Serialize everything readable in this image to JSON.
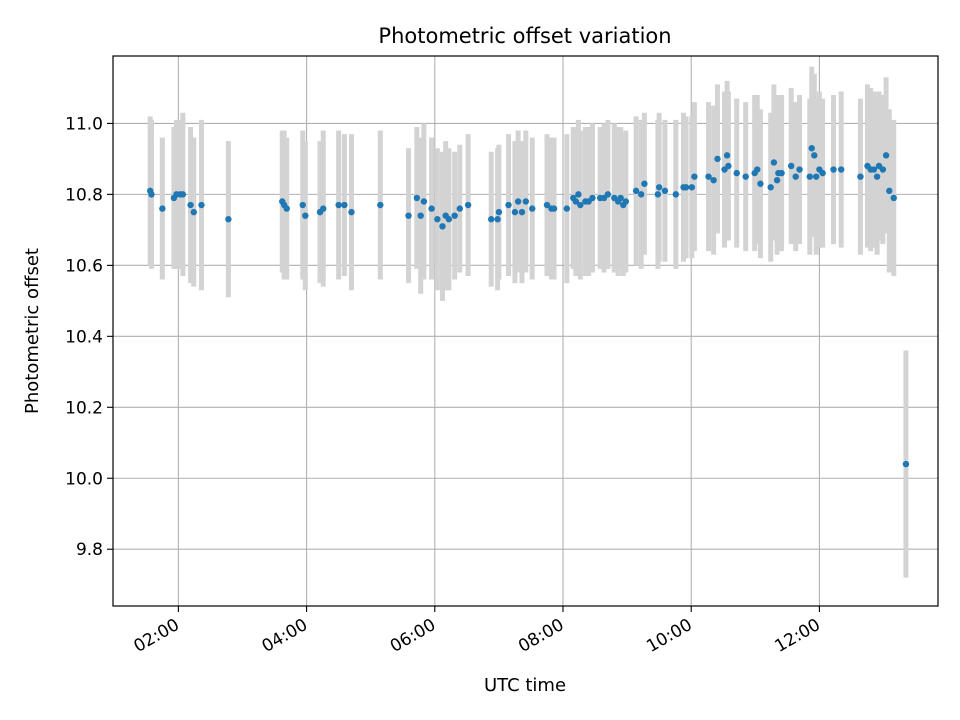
{
  "chart_data": {
    "type": "scatter",
    "title": "Photometric offset variation",
    "xlabel": "UTC time",
    "ylabel": "Photometric offset",
    "x_unit": "hours UTC",
    "xlim": [
      0.98,
      13.85
    ],
    "ylim": [
      9.64,
      11.19
    ],
    "x_ticks": [
      {
        "value": 2,
        "label": "02:00"
      },
      {
        "value": 4,
        "label": "04:00"
      },
      {
        "value": 6,
        "label": "06:00"
      },
      {
        "value": 8,
        "label": "08:00"
      },
      {
        "value": 10,
        "label": "10:00"
      },
      {
        "value": 12,
        "label": "12:00"
      }
    ],
    "y_ticks": [
      {
        "value": 9.8,
        "label": "9.8"
      },
      {
        "value": 10.0,
        "label": "10.0"
      },
      {
        "value": 10.2,
        "label": "10.2"
      },
      {
        "value": 10.4,
        "label": "10.4"
      },
      {
        "value": 10.6,
        "label": "10.6"
      },
      {
        "value": 10.8,
        "label": "10.8"
      },
      {
        "value": 11.0,
        "label": "11.0"
      }
    ],
    "grid": true,
    "colors": {
      "point": "#1f77b4",
      "errorbar": "#d3d3d3",
      "grid": "#b0b0b0",
      "axes": "#000000"
    },
    "series": [
      {
        "points": [
          [
            1.56,
            10.81,
            0.21
          ],
          [
            1.58,
            10.8,
            0.21
          ],
          [
            1.75,
            10.76,
            0.2
          ],
          [
            1.93,
            10.79,
            0.2
          ],
          [
            1.97,
            10.8,
            0.21
          ],
          [
            2.03,
            10.8,
            0.21
          ],
          [
            2.07,
            10.8,
            0.23
          ],
          [
            2.19,
            10.77,
            0.22
          ],
          [
            2.24,
            10.75,
            0.21
          ],
          [
            2.36,
            10.77,
            0.24
          ],
          [
            2.78,
            10.73,
            0.22
          ],
          [
            3.62,
            10.78,
            0.2
          ],
          [
            3.65,
            10.77,
            0.21
          ],
          [
            3.69,
            10.76,
            0.2
          ],
          [
            3.94,
            10.77,
            0.21
          ],
          [
            3.98,
            10.74,
            0.21
          ],
          [
            4.21,
            10.75,
            0.2
          ],
          [
            4.26,
            10.76,
            0.22
          ],
          [
            4.5,
            10.77,
            0.21
          ],
          [
            4.59,
            10.77,
            0.2
          ],
          [
            4.7,
            10.75,
            0.22
          ],
          [
            5.15,
            10.77,
            0.21
          ],
          [
            5.59,
            10.74,
            0.19
          ],
          [
            5.72,
            10.79,
            0.2
          ],
          [
            5.78,
            10.74,
            0.22
          ],
          [
            5.83,
            10.78,
            0.22
          ],
          [
            5.95,
            10.76,
            0.2
          ],
          [
            6.04,
            10.73,
            0.2
          ],
          [
            6.12,
            10.71,
            0.21
          ],
          [
            6.17,
            10.74,
            0.21
          ],
          [
            6.22,
            10.73,
            0.2
          ],
          [
            6.31,
            10.74,
            0.18
          ],
          [
            6.39,
            10.76,
            0.18
          ],
          [
            6.52,
            10.77,
            0.2
          ],
          [
            6.88,
            10.73,
            0.19
          ],
          [
            6.98,
            10.73,
            0.2
          ],
          [
            7.0,
            10.75,
            0.19
          ],
          [
            7.15,
            10.77,
            0.2
          ],
          [
            7.25,
            10.75,
            0.2
          ],
          [
            7.3,
            10.78,
            0.2
          ],
          [
            7.36,
            10.75,
            0.2
          ],
          [
            7.42,
            10.78,
            0.2
          ],
          [
            7.52,
            10.76,
            0.2
          ],
          [
            7.75,
            10.77,
            0.2
          ],
          [
            7.82,
            10.76,
            0.2
          ],
          [
            7.86,
            10.76,
            0.2
          ],
          [
            8.06,
            10.76,
            0.21
          ],
          [
            8.16,
            10.79,
            0.2
          ],
          [
            8.2,
            10.78,
            0.21
          ],
          [
            8.24,
            10.8,
            0.21
          ],
          [
            8.27,
            10.77,
            0.21
          ],
          [
            8.35,
            10.78,
            0.21
          ],
          [
            8.4,
            10.78,
            0.21
          ],
          [
            8.46,
            10.79,
            0.21
          ],
          [
            8.58,
            10.79,
            0.2
          ],
          [
            8.64,
            10.79,
            0.21
          ],
          [
            8.7,
            10.8,
            0.21
          ],
          [
            8.8,
            10.79,
            0.21
          ],
          [
            8.86,
            10.78,
            0.21
          ],
          [
            8.9,
            10.79,
            0.2
          ],
          [
            8.94,
            10.77,
            0.2
          ],
          [
            8.98,
            10.78,
            0.2
          ],
          [
            9.14,
            10.81,
            0.21
          ],
          [
            9.22,
            10.8,
            0.21
          ],
          [
            9.27,
            10.83,
            0.2
          ],
          [
            9.48,
            10.8,
            0.21
          ],
          [
            9.5,
            10.82,
            0.21
          ],
          [
            9.59,
            10.81,
            0.2
          ],
          [
            9.76,
            10.8,
            0.21
          ],
          [
            9.88,
            10.82,
            0.21
          ],
          [
            9.92,
            10.82,
            0.2
          ],
          [
            10.01,
            10.82,
            0.2
          ],
          [
            10.05,
            10.85,
            0.21
          ],
          [
            10.27,
            10.85,
            0.21
          ],
          [
            10.35,
            10.84,
            0.21
          ],
          [
            10.41,
            10.9,
            0.21
          ],
          [
            10.52,
            10.87,
            0.22
          ],
          [
            10.56,
            10.91,
            0.21
          ],
          [
            10.58,
            10.88,
            0.21
          ],
          [
            10.71,
            10.86,
            0.21
          ],
          [
            10.85,
            10.85,
            0.21
          ],
          [
            10.99,
            10.86,
            0.22
          ],
          [
            11.03,
            10.87,
            0.21
          ],
          [
            11.08,
            10.83,
            0.21
          ],
          [
            11.24,
            10.82,
            0.21
          ],
          [
            11.29,
            10.89,
            0.22
          ],
          [
            11.34,
            10.84,
            0.21
          ],
          [
            11.36,
            10.86,
            0.22
          ],
          [
            11.41,
            10.86,
            0.22
          ],
          [
            11.56,
            10.88,
            0.22
          ],
          [
            11.63,
            10.85,
            0.21
          ],
          [
            11.69,
            10.87,
            0.21
          ],
          [
            11.85,
            10.85,
            0.22
          ],
          [
            11.88,
            10.93,
            0.23
          ],
          [
            11.92,
            10.91,
            0.23
          ],
          [
            11.95,
            10.85,
            0.22
          ],
          [
            12.0,
            10.87,
            0.22
          ],
          [
            12.05,
            10.86,
            0.21
          ],
          [
            12.22,
            10.87,
            0.21
          ],
          [
            12.34,
            10.87,
            0.22
          ],
          [
            12.64,
            10.85,
            0.22
          ],
          [
            12.75,
            10.88,
            0.23
          ],
          [
            12.8,
            10.87,
            0.23
          ],
          [
            12.85,
            10.87,
            0.22
          ],
          [
            12.9,
            10.85,
            0.22
          ],
          [
            12.93,
            10.88,
            0.21
          ],
          [
            12.99,
            10.87,
            0.21
          ],
          [
            13.04,
            10.91,
            0.22
          ],
          [
            13.09,
            10.81,
            0.23
          ],
          [
            13.16,
            10.79,
            0.22
          ],
          [
            13.35,
            10.04,
            0.32
          ]
        ]
      }
    ]
  }
}
